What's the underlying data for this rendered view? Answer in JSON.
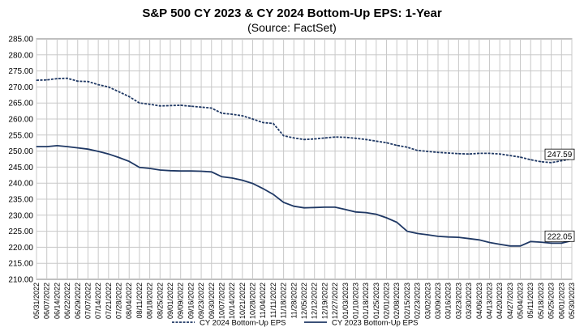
{
  "chart_data": {
    "type": "line",
    "title": "S&P 500 CY 2023 & CY 2024 Bottom-Up EPS: 1-Year",
    "subtitle": "(Source: FactSet)",
    "ylim": [
      210,
      285
    ],
    "yticks": [
      "210.00",
      "215.00",
      "220.00",
      "225.00",
      "230.00",
      "235.00",
      "240.00",
      "245.00",
      "250.00",
      "255.00",
      "260.00",
      "265.00",
      "270.00",
      "275.00",
      "280.00",
      "285.00"
    ],
    "grid": true,
    "legend_position": "bottom",
    "x": [
      "05/31/2022",
      "06/07/2022",
      "06/14/2022",
      "06/21/2022",
      "06/28/2022",
      "07/05/2022",
      "07/12/2022",
      "07/19/2022",
      "07/26/2022",
      "08/02/2022",
      "08/09/2022",
      "08/16/2022",
      "08/23/2022",
      "08/30/2022",
      "09/06/2022",
      "09/13/2022",
      "09/20/2022",
      "09/27/2022",
      "10/04/2022",
      "10/11/2022",
      "10/18/2022",
      "10/25/2022",
      "11/01/2022",
      "11/08/2022",
      "11/15/2022",
      "11/22/2022",
      "11/29/2022",
      "12/06/2022",
      "12/13/2022",
      "12/20/2022",
      "12/27/2022",
      "01/03/2023",
      "01/10/2023",
      "01/17/2023",
      "01/24/2023",
      "01/31/2023",
      "02/07/2023",
      "02/14/2023",
      "02/21/2023",
      "02/28/2023",
      "03/07/2023",
      "03/14/2023",
      "03/21/2023",
      "03/28/2023",
      "04/04/2023",
      "04/11/2023",
      "04/18/2023",
      "04/25/2023",
      "05/02/2023",
      "05/09/2023",
      "05/16/2023",
      "05/23/2023",
      "05/30/2023"
    ],
    "xtick_labels": [
      "05/31/2022",
      "06/07/2022",
      "06/14/2022",
      "06/22/2022",
      "06/29/2022",
      "07/07/2022",
      "07/14/2022",
      "07/21/2022",
      "07/28/2022",
      "08/04/2022",
      "08/11/2022",
      "08/18/2022",
      "08/25/2022",
      "09/01/2022",
      "09/09/2022",
      "09/16/2022",
      "09/23/2022",
      "09/30/2022",
      "10/07/2022",
      "10/14/2022",
      "10/21/2022",
      "10/28/2022",
      "11/04/2022",
      "11/11/2022",
      "11/18/2022",
      "11/28/2022",
      "12/05/2022",
      "12/12/2022",
      "12/19/2022",
      "12/27/2022",
      "01/03/2023",
      "01/10/2023",
      "01/18/2023",
      "01/25/2023",
      "02/01/2023",
      "02/08/2023",
      "02/15/2023",
      "02/23/2023",
      "03/02/2023",
      "03/09/2023",
      "03/16/2023",
      "03/23/2023",
      "03/30/2023",
      "04/06/2023",
      "04/13/2023",
      "04/20/2023",
      "04/27/2023",
      "05/04/2023",
      "05/11/2023",
      "05/18/2023",
      "05/25/2023",
      "06/01/2023",
      "05/30/2023"
    ],
    "series": [
      {
        "name": "CY 2024 Bottom-Up EPS",
        "dash": true,
        "color": "#1f3864",
        "values": [
          272.1,
          272.2,
          272.6,
          272.7,
          271.8,
          271.7,
          270.7,
          270.0,
          268.5,
          267.0,
          265.0,
          264.6,
          264.1,
          264.2,
          264.3,
          264.0,
          263.7,
          263.4,
          261.8,
          261.5,
          261.0,
          260.0,
          258.9,
          258.6,
          254.8,
          254.1,
          253.6,
          253.8,
          254.1,
          254.4,
          254.3,
          254.0,
          253.6,
          253.1,
          252.6,
          251.8,
          251.2,
          250.2,
          249.9,
          249.6,
          249.4,
          249.2,
          249.1,
          249.3,
          249.3,
          249.1,
          248.6,
          248.1,
          247.3,
          246.7,
          246.4,
          247.0,
          247.59
        ],
        "end_label": "247.59"
      },
      {
        "name": "CY 2023 Bottom-Up EPS",
        "dash": false,
        "color": "#1f3864",
        "values": [
          251.4,
          251.4,
          251.7,
          251.4,
          251.0,
          250.6,
          249.9,
          249.1,
          248.0,
          246.8,
          244.9,
          244.6,
          244.1,
          243.9,
          243.8,
          243.8,
          243.7,
          243.5,
          242.0,
          241.6,
          240.9,
          239.9,
          238.3,
          236.5,
          234.0,
          232.8,
          232.3,
          232.4,
          232.5,
          232.5,
          231.8,
          231.0,
          230.8,
          230.3,
          229.2,
          227.8,
          225.0,
          224.3,
          223.9,
          223.4,
          223.2,
          223.1,
          222.7,
          222.3,
          221.5,
          220.9,
          220.4,
          220.4,
          221.8,
          221.6,
          221.3,
          221.3,
          222.05
        ],
        "end_label": "222.05"
      }
    ]
  }
}
